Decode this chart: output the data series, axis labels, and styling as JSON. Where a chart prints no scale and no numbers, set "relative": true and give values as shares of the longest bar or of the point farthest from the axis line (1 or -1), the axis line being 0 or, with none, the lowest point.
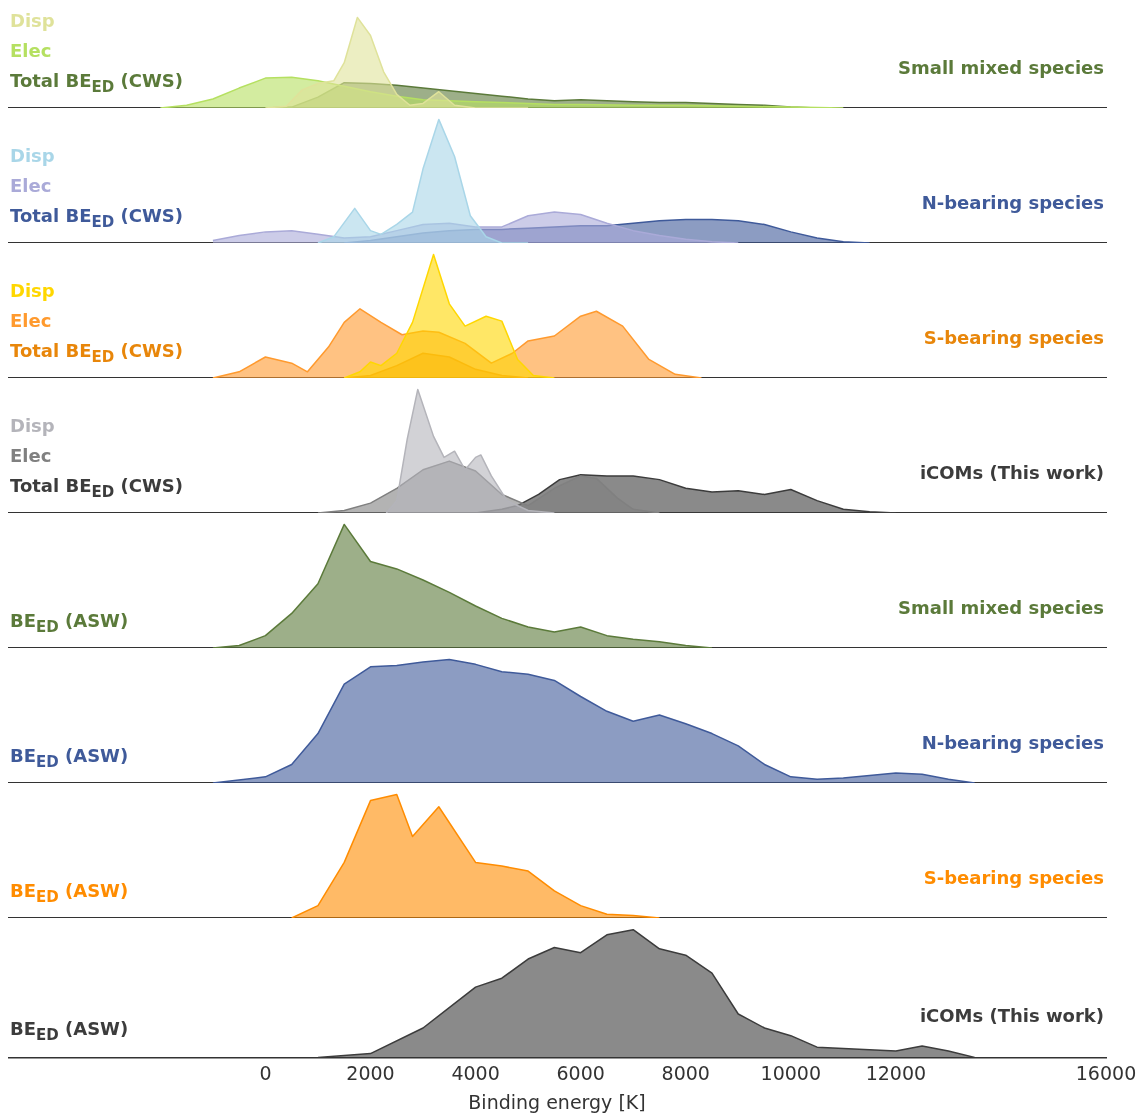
{
  "chart_data": [
    {
      "type": "area",
      "title": "Small mixed species",
      "relative": true,
      "xlim": [
        -4900,
        16000
      ],
      "tick_labels": false,
      "series": [
        {
          "name": "Disp",
          "color": "#dfe29a",
          "x": [
            0,
            400,
            700,
            1000,
            1300,
            1500,
            1750,
            2000,
            2250,
            2500,
            2750,
            3000,
            3300,
            3600,
            4000,
            5000
          ],
          "values": [
            0,
            0.02,
            0.2,
            0.27,
            0.3,
            0.5,
            1,
            0.8,
            0.4,
            0.15,
            0.03,
            0.05,
            0.18,
            0.03,
            0,
            0
          ]
        },
        {
          "name": "Elec",
          "color": "#b5e061",
          "x": [
            -2000,
            -1500,
            -1000,
            -500,
            0,
            500,
            1000,
            1500,
            2000,
            2500,
            3000,
            3500,
            4000,
            4500,
            5000,
            5500,
            6000,
            7000,
            8000,
            9000,
            10000,
            11000
          ],
          "values": [
            0,
            0.03,
            0.1,
            0.22,
            0.33,
            0.34,
            0.3,
            0.24,
            0.18,
            0.13,
            0.09,
            0.08,
            0.07,
            0.06,
            0.05,
            0.04,
            0.04,
            0.03,
            0.03,
            0.02,
            0.01,
            0
          ]
        },
        {
          "name": "Total BE$_{ED}$ (CWS)",
          "color": "#5b7a3a",
          "x": [
            0,
            500,
            1000,
            1500,
            2000,
            2500,
            3000,
            3500,
            4000,
            4500,
            5000,
            5500,
            6000,
            6500,
            7000,
            7500,
            8000,
            8500,
            9000,
            9500,
            10000,
            10500
          ],
          "values": [
            0,
            0.01,
            0.12,
            0.28,
            0.27,
            0.25,
            0.22,
            0.19,
            0.16,
            0.13,
            0.1,
            0.08,
            0.09,
            0.08,
            0.07,
            0.06,
            0.06,
            0.05,
            0.04,
            0.03,
            0.01,
            0
          ]
        }
      ]
    },
    {
      "type": "area",
      "title": "N-bearing species",
      "relative": true,
      "xlim": [
        -4900,
        16000
      ],
      "tick_labels": false,
      "series": [
        {
          "name": "Disp",
          "color": "#a9d6e8",
          "x": [
            1000,
            1300,
            1700,
            2000,
            2200,
            2500,
            2800,
            3000,
            3300,
            3600,
            3900,
            4200,
            4500,
            5000
          ],
          "values": [
            0,
            0.05,
            0.28,
            0.1,
            0.07,
            0.15,
            0.25,
            0.6,
            1,
            0.7,
            0.22,
            0.05,
            0,
            0
          ]
        },
        {
          "name": "Elec",
          "color": "#aaaad8",
          "x": [
            -1000,
            -500,
            0,
            500,
            1000,
            1500,
            2000,
            2500,
            3000,
            3500,
            4000,
            4500,
            5000,
            5500,
            6000,
            6500,
            7000,
            7500,
            8000,
            8500,
            9000
          ],
          "values": [
            0.02,
            0.06,
            0.09,
            0.1,
            0.07,
            0.04,
            0.05,
            0.1,
            0.15,
            0.16,
            0.13,
            0.13,
            0.22,
            0.25,
            0.23,
            0.16,
            0.1,
            0.06,
            0.03,
            0.01,
            0
          ]
        },
        {
          "name": "Total BE$_{ED}$ (CWS)",
          "color": "#3f5a9a",
          "x": [
            1500,
            2000,
            2500,
            3000,
            3500,
            4000,
            4500,
            5000,
            5500,
            6000,
            6500,
            7000,
            7500,
            8000,
            8500,
            9000,
            9500,
            10000,
            10500,
            11000,
            11500
          ],
          "values": [
            0,
            0.02,
            0.05,
            0.08,
            0.1,
            0.11,
            0.11,
            0.12,
            0.13,
            0.14,
            0.14,
            0.16,
            0.18,
            0.19,
            0.19,
            0.18,
            0.15,
            0.09,
            0.04,
            0.01,
            0
          ]
        }
      ]
    },
    {
      "type": "area",
      "title": "S-bearing species",
      "relative": true,
      "xlim": [
        -4900,
        16000
      ],
      "tick_labels": false,
      "series": [
        {
          "name": "Disp",
          "color": "#ffd700",
          "x": [
            1500,
            1800,
            2000,
            2200,
            2500,
            2800,
            3200,
            3500,
            3800,
            4200,
            4500,
            4800,
            5100,
            5500
          ],
          "values": [
            0,
            0.05,
            0.13,
            0.1,
            0.2,
            0.45,
            1,
            0.6,
            0.42,
            0.5,
            0.46,
            0.15,
            0.02,
            0
          ]
        },
        {
          "name": "Elec",
          "color": "#ff9a2e",
          "x": [
            -1000,
            -500,
            0,
            500,
            800,
            1200,
            1500,
            1800,
            2200,
            2600,
            3000,
            3300,
            3800,
            4300,
            4700,
            5000,
            5500,
            6000,
            6300,
            6800,
            7300,
            7800,
            8300
          ],
          "values": [
            0,
            0.05,
            0.17,
            0.12,
            0.05,
            0.25,
            0.45,
            0.56,
            0.45,
            0.35,
            0.38,
            0.37,
            0.28,
            0.12,
            0.2,
            0.3,
            0.34,
            0.5,
            0.54,
            0.42,
            0.15,
            0.03,
            0
          ]
        },
        {
          "name": "Total BE$_{ED}$ (CWS)",
          "color": "#e8860a",
          "x": [
            1500,
            2000,
            2500,
            3000,
            3500,
            4000,
            4500,
            5000
          ],
          "values": [
            0,
            0.02,
            0.1,
            0.2,
            0.17,
            0.07,
            0.02,
            0
          ]
        }
      ]
    },
    {
      "type": "area",
      "title": "iCOMs (This work)",
      "relative": true,
      "xlim": [
        -4900,
        16000
      ],
      "tick_labels": false,
      "series": [
        {
          "name": "Disp",
          "color": "#b4b4ba",
          "x": [
            2300,
            2500,
            2700,
            2900,
            3200,
            3400,
            3600,
            3800,
            4000,
            4100,
            4300,
            4600,
            5000,
            5500
          ],
          "values": [
            0,
            0.1,
            0.6,
            1,
            0.62,
            0.45,
            0.5,
            0.35,
            0.45,
            0.47,
            0.3,
            0.1,
            0.02,
            0
          ]
        },
        {
          "name": "Elec",
          "color": "#808080",
          "x": [
            1000,
            1500,
            2000,
            2500,
            3000,
            3500,
            4000,
            4500,
            5000,
            5500,
            6000,
            6300,
            6700,
            7000,
            7500
          ],
          "values": [
            0,
            0.02,
            0.08,
            0.2,
            0.35,
            0.42,
            0.34,
            0.15,
            0.06,
            0.2,
            0.3,
            0.28,
            0.12,
            0.03,
            0
          ]
        },
        {
          "name": "Total BE$_{ED}$ (CWS)",
          "color": "#3c3c3c",
          "x": [
            4000,
            4500,
            4800,
            5200,
            5600,
            6000,
            6500,
            7000,
            7500,
            8000,
            8500,
            9000,
            9500,
            10000,
            10500,
            11000,
            11500,
            12000
          ],
          "values": [
            0,
            0.03,
            0.06,
            0.15,
            0.27,
            0.31,
            0.3,
            0.3,
            0.27,
            0.2,
            0.17,
            0.18,
            0.15,
            0.19,
            0.1,
            0.03,
            0.01,
            0
          ]
        }
      ]
    },
    {
      "type": "area",
      "title": "Small mixed species",
      "relative": true,
      "xlim": [
        -4900,
        16000
      ],
      "tick_labels": false,
      "series": [
        {
          "name": "BE$_{ED}$ (ASW)",
          "color": "#5b7a3a",
          "x": [
            -1000,
            -500,
            0,
            500,
            1000,
            1500,
            2000,
            2500,
            3000,
            3500,
            4000,
            4500,
            5000,
            5500,
            6000,
            6500,
            7000,
            7500,
            8000,
            8500
          ],
          "values": [
            0,
            0.02,
            0.1,
            0.28,
            0.52,
            1,
            0.7,
            0.64,
            0.55,
            0.45,
            0.34,
            0.24,
            0.17,
            0.13,
            0.17,
            0.1,
            0.07,
            0.05,
            0.02,
            0
          ]
        }
      ]
    },
    {
      "type": "area",
      "title": "N-bearing species",
      "relative": true,
      "xlim": [
        -4900,
        16000
      ],
      "tick_labels": false,
      "series": [
        {
          "name": "BE$_{ED}$ (ASW)",
          "color": "#3f5a9a",
          "x": [
            -1000,
            0,
            500,
            1000,
            1500,
            2000,
            2500,
            3000,
            3500,
            4000,
            4500,
            5000,
            5500,
            6000,
            6500,
            7000,
            7500,
            8000,
            8500,
            9000,
            9500,
            10000,
            10500,
            11000,
            11500,
            12000,
            12500,
            13000,
            13500
          ],
          "values": [
            0,
            0.05,
            0.15,
            0.4,
            0.8,
            0.94,
            0.95,
            0.98,
            1,
            0.96,
            0.9,
            0.88,
            0.83,
            0.7,
            0.58,
            0.5,
            0.55,
            0.48,
            0.4,
            0.3,
            0.15,
            0.05,
            0.03,
            0.04,
            0.06,
            0.08,
            0.07,
            0.03,
            0
          ]
        }
      ]
    },
    {
      "type": "area",
      "title": "S-bearing species",
      "relative": true,
      "xlim": [
        -4900,
        16000
      ],
      "tick_labels": false,
      "series": [
        {
          "name": "BE$_{ED}$ (ASW)",
          "color": "#ff8c00",
          "x": [
            500,
            1000,
            1500,
            2000,
            2500,
            2800,
            3300,
            4000,
            4500,
            5000,
            5500,
            6000,
            6500,
            7000,
            7500
          ],
          "values": [
            0,
            0.1,
            0.45,
            0.95,
            1,
            0.66,
            0.9,
            0.45,
            0.42,
            0.38,
            0.22,
            0.1,
            0.03,
            0.02,
            0
          ]
        }
      ]
    },
    {
      "type": "area",
      "title": "iCOMs (This work)",
      "relative": true,
      "xlim": [
        -4900,
        16000
      ],
      "xticks": [
        0,
        2000,
        4000,
        6000,
        8000,
        10000,
        12000,
        16000
      ],
      "xlabel": "Binding energy [K]",
      "tick_labels": "x",
      "series": [
        {
          "name": "BE$_{ED}$ (ASW)",
          "color": "#3c3c3c",
          "x": [
            1000,
            2000,
            3000,
            4000,
            4500,
            5000,
            5500,
            6000,
            6500,
            7000,
            7500,
            8000,
            8500,
            9000,
            9500,
            10000,
            10500,
            11000,
            12000,
            12500,
            13000,
            13500
          ],
          "values": [
            0,
            0.03,
            0.23,
            0.55,
            0.62,
            0.77,
            0.86,
            0.82,
            0.96,
            1,
            0.85,
            0.8,
            0.66,
            0.34,
            0.23,
            0.17,
            0.08,
            0.07,
            0.05,
            0.09,
            0.05,
            0
          ]
        }
      ]
    }
  ]
}
